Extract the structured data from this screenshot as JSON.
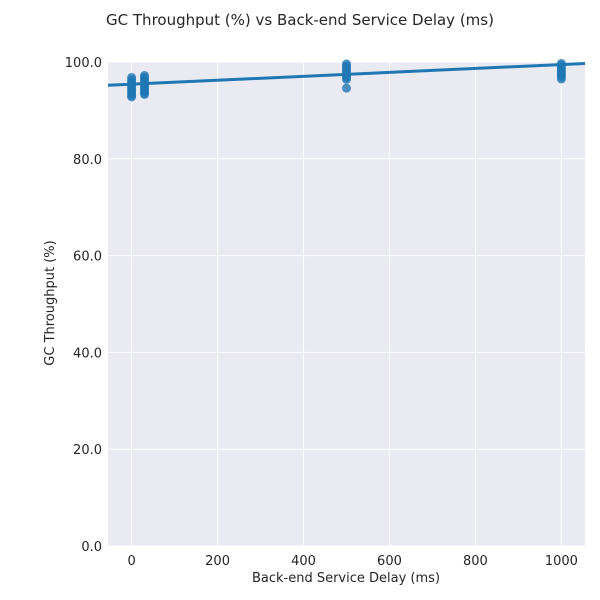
{
  "chart_data": {
    "type": "scatter",
    "title": "GC Throughput (%) vs Back-end Service Delay (ms)",
    "xlabel": "Back-end Service Delay (ms)",
    "ylabel": "GC Throughput (%)",
    "xlim": [
      -55,
      1055
    ],
    "ylim": [
      0,
      100
    ],
    "xticks": [
      0,
      200,
      400,
      600,
      800,
      1000
    ],
    "yticks": [
      0.0,
      20.0,
      40.0,
      60.0,
      80.0,
      100.0
    ],
    "xtick_labels": [
      "0",
      "200",
      "400",
      "600",
      "800",
      "1000"
    ],
    "ytick_labels": [
      "0.0",
      "20.0",
      "40.0",
      "60.0",
      "80.0",
      "100.0"
    ],
    "grid": true,
    "background": "#eaeaf2",
    "marker_color": "#1f77b4",
    "line_color": "#1f77b4",
    "points": [
      {
        "x": 0,
        "y": 96.8
      },
      {
        "x": 0,
        "y": 96.3
      },
      {
        "x": 0,
        "y": 95.9
      },
      {
        "x": 0,
        "y": 95.5
      },
      {
        "x": 0,
        "y": 95.1
      },
      {
        "x": 0,
        "y": 94.7
      },
      {
        "x": 0,
        "y": 94.3
      },
      {
        "x": 0,
        "y": 93.9
      },
      {
        "x": 0,
        "y": 93.5
      },
      {
        "x": 0,
        "y": 93.1
      },
      {
        "x": 0,
        "y": 92.8
      },
      {
        "x": 30,
        "y": 97.2
      },
      {
        "x": 30,
        "y": 96.8
      },
      {
        "x": 30,
        "y": 96.4
      },
      {
        "x": 30,
        "y": 96.0
      },
      {
        "x": 30,
        "y": 95.6
      },
      {
        "x": 30,
        "y": 95.2
      },
      {
        "x": 30,
        "y": 94.8
      },
      {
        "x": 30,
        "y": 94.4
      },
      {
        "x": 30,
        "y": 94.0
      },
      {
        "x": 30,
        "y": 93.6
      },
      {
        "x": 30,
        "y": 93.3
      },
      {
        "x": 500,
        "y": 99.6
      },
      {
        "x": 500,
        "y": 99.2
      },
      {
        "x": 500,
        "y": 98.8
      },
      {
        "x": 500,
        "y": 98.4
      },
      {
        "x": 500,
        "y": 98.0
      },
      {
        "x": 500,
        "y": 97.6
      },
      {
        "x": 500,
        "y": 97.2
      },
      {
        "x": 500,
        "y": 96.8
      },
      {
        "x": 500,
        "y": 96.4
      },
      {
        "x": 500,
        "y": 94.6
      },
      {
        "x": 1000,
        "y": 99.7
      },
      {
        "x": 1000,
        "y": 99.3
      },
      {
        "x": 1000,
        "y": 98.9
      },
      {
        "x": 1000,
        "y": 98.5
      },
      {
        "x": 1000,
        "y": 98.1
      },
      {
        "x": 1000,
        "y": 97.7
      },
      {
        "x": 1000,
        "y": 97.3
      },
      {
        "x": 1000,
        "y": 96.9
      },
      {
        "x": 1000,
        "y": 96.5
      }
    ],
    "regression_line": {
      "x": [
        -55,
        1055
      ],
      "y": [
        95.2,
        99.7
      ]
    }
  }
}
